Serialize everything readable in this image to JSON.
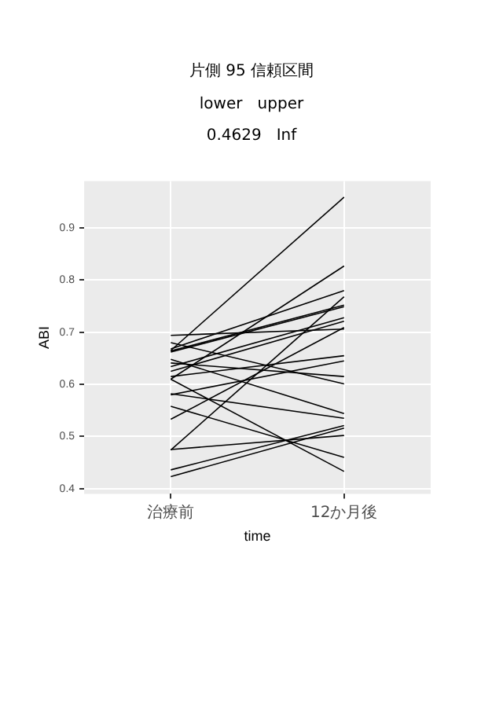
{
  "chart_data": {
    "type": "line",
    "title": "片側 95 信頼区間",
    "annotations": [
      "lower   upper",
      "0.4629   Inf"
    ],
    "xlabel": "time",
    "ylabel": "ABI",
    "categories": [
      "治療前",
      "12か月後"
    ],
    "ylim": [
      0.39,
      0.99
    ],
    "yticks": [
      0.4,
      0.5,
      0.6,
      0.7,
      0.8,
      0.9
    ],
    "grid": true,
    "legend": false,
    "marker": "none",
    "line_style": "solid",
    "series": [
      {
        "color": "#000000",
        "values": [
          0.665,
          0.959
        ]
      },
      {
        "color": "#000000",
        "values": [
          0.61,
          0.827
        ]
      },
      {
        "color": "#000000",
        "values": [
          0.474,
          0.768
        ]
      },
      {
        "color": "#000000",
        "values": [
          0.533,
          0.709
        ]
      },
      {
        "color": "#000000",
        "values": [
          0.694,
          0.706
        ]
      },
      {
        "color": "#000000",
        "values": [
          0.68,
          0.601
        ]
      },
      {
        "color": "#000000",
        "values": [
          0.668,
          0.78
        ]
      },
      {
        "color": "#000000",
        "values": [
          0.664,
          0.752
        ]
      },
      {
        "color": "#000000",
        "values": [
          0.662,
          0.749
        ]
      },
      {
        "color": "#000000",
        "values": [
          0.648,
          0.544
        ]
      },
      {
        "color": "#000000",
        "values": [
          0.641,
          0.615
        ]
      },
      {
        "color": "#000000",
        "values": [
          0.634,
          0.728
        ]
      },
      {
        "color": "#000000",
        "values": [
          0.625,
          0.721
        ]
      },
      {
        "color": "#000000",
        "values": [
          0.615,
          0.655
        ]
      },
      {
        "color": "#000000",
        "values": [
          0.58,
          0.645
        ]
      },
      {
        "color": "#000000",
        "values": [
          0.582,
          0.535
        ]
      },
      {
        "color": "#000000",
        "values": [
          0.558,
          0.46
        ]
      },
      {
        "color": "#000000",
        "values": [
          0.475,
          0.502
        ]
      },
      {
        "color": "#000000",
        "values": [
          0.436,
          0.521
        ]
      },
      {
        "color": "#000000",
        "values": [
          0.423,
          0.516
        ]
      },
      {
        "color": "#000000",
        "values": [
          0.61,
          0.433
        ]
      }
    ]
  }
}
